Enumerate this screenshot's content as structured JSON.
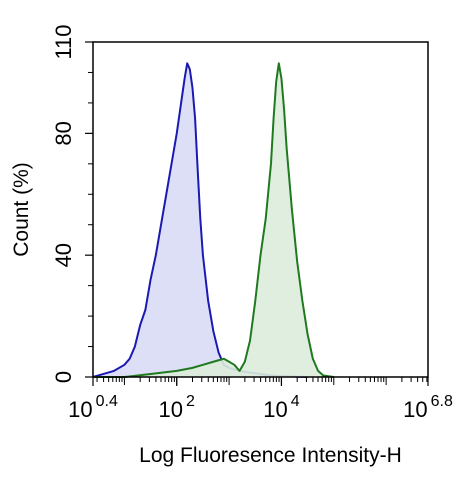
{
  "chart_data": {
    "type": "area",
    "xlabel": "Log Fluoresence Intensity-H",
    "ylabel": "Count  (%)",
    "x_scale": "log10",
    "xlim": [
      0.4,
      6.8
    ],
    "ylim": [
      0,
      110
    ],
    "x_ticks": [
      {
        "base": "10",
        "exp": "0.4",
        "value": 0.4
      },
      {
        "base": "10",
        "exp": "2",
        "value": 2
      },
      {
        "base": "10",
        "exp": "4",
        "value": 4
      },
      {
        "base": "10",
        "exp": "6.8",
        "value": 6.8
      }
    ],
    "y_ticks": [
      {
        "label": "0",
        "value": 0
      },
      {
        "label": "40",
        "value": 40
      },
      {
        "label": "80",
        "value": 80
      },
      {
        "label": "110",
        "value": 110
      }
    ],
    "grid": false,
    "series": [
      {
        "color": "#1a1ab3",
        "fill": "#d9dbf5",
        "x": [
          0.4,
          0.6,
          0.8,
          1.0,
          1.1,
          1.2,
          1.3,
          1.4,
          1.5,
          1.6,
          1.7,
          1.8,
          1.9,
          2.0,
          2.1,
          2.15,
          2.2,
          2.25,
          2.3,
          2.35,
          2.4,
          2.45,
          2.5,
          2.6,
          2.7,
          2.8,
          2.9,
          3.0,
          3.2,
          3.4,
          3.6,
          3.8,
          4.0,
          4.5
        ],
        "y": [
          0,
          1,
          2,
          4,
          6,
          10,
          17,
          22,
          32,
          40,
          50,
          60,
          70,
          80,
          92,
          98,
          103,
          101,
          95,
          85,
          68,
          52,
          40,
          25,
          15,
          8,
          4,
          3,
          2,
          1.5,
          1,
          0.5,
          0.3,
          0
        ]
      },
      {
        "color": "#1f7a1f",
        "fill": "#dcecdc",
        "x": [
          0.4,
          1.0,
          1.5,
          2.0,
          2.3,
          2.5,
          2.7,
          2.9,
          3.0,
          3.1,
          3.2,
          3.3,
          3.4,
          3.5,
          3.6,
          3.7,
          3.8,
          3.85,
          3.9,
          3.95,
          4.0,
          4.05,
          4.1,
          4.2,
          4.3,
          4.4,
          4.5,
          4.6,
          4.7,
          4.8,
          5.0
        ],
        "y": [
          0,
          0,
          1,
          2,
          3,
          4,
          5,
          6,
          5,
          4,
          2,
          5,
          12,
          25,
          40,
          52,
          70,
          85,
          97,
          103,
          98,
          88,
          75,
          55,
          38,
          25,
          14,
          6,
          2,
          0.5,
          0
        ]
      }
    ]
  }
}
